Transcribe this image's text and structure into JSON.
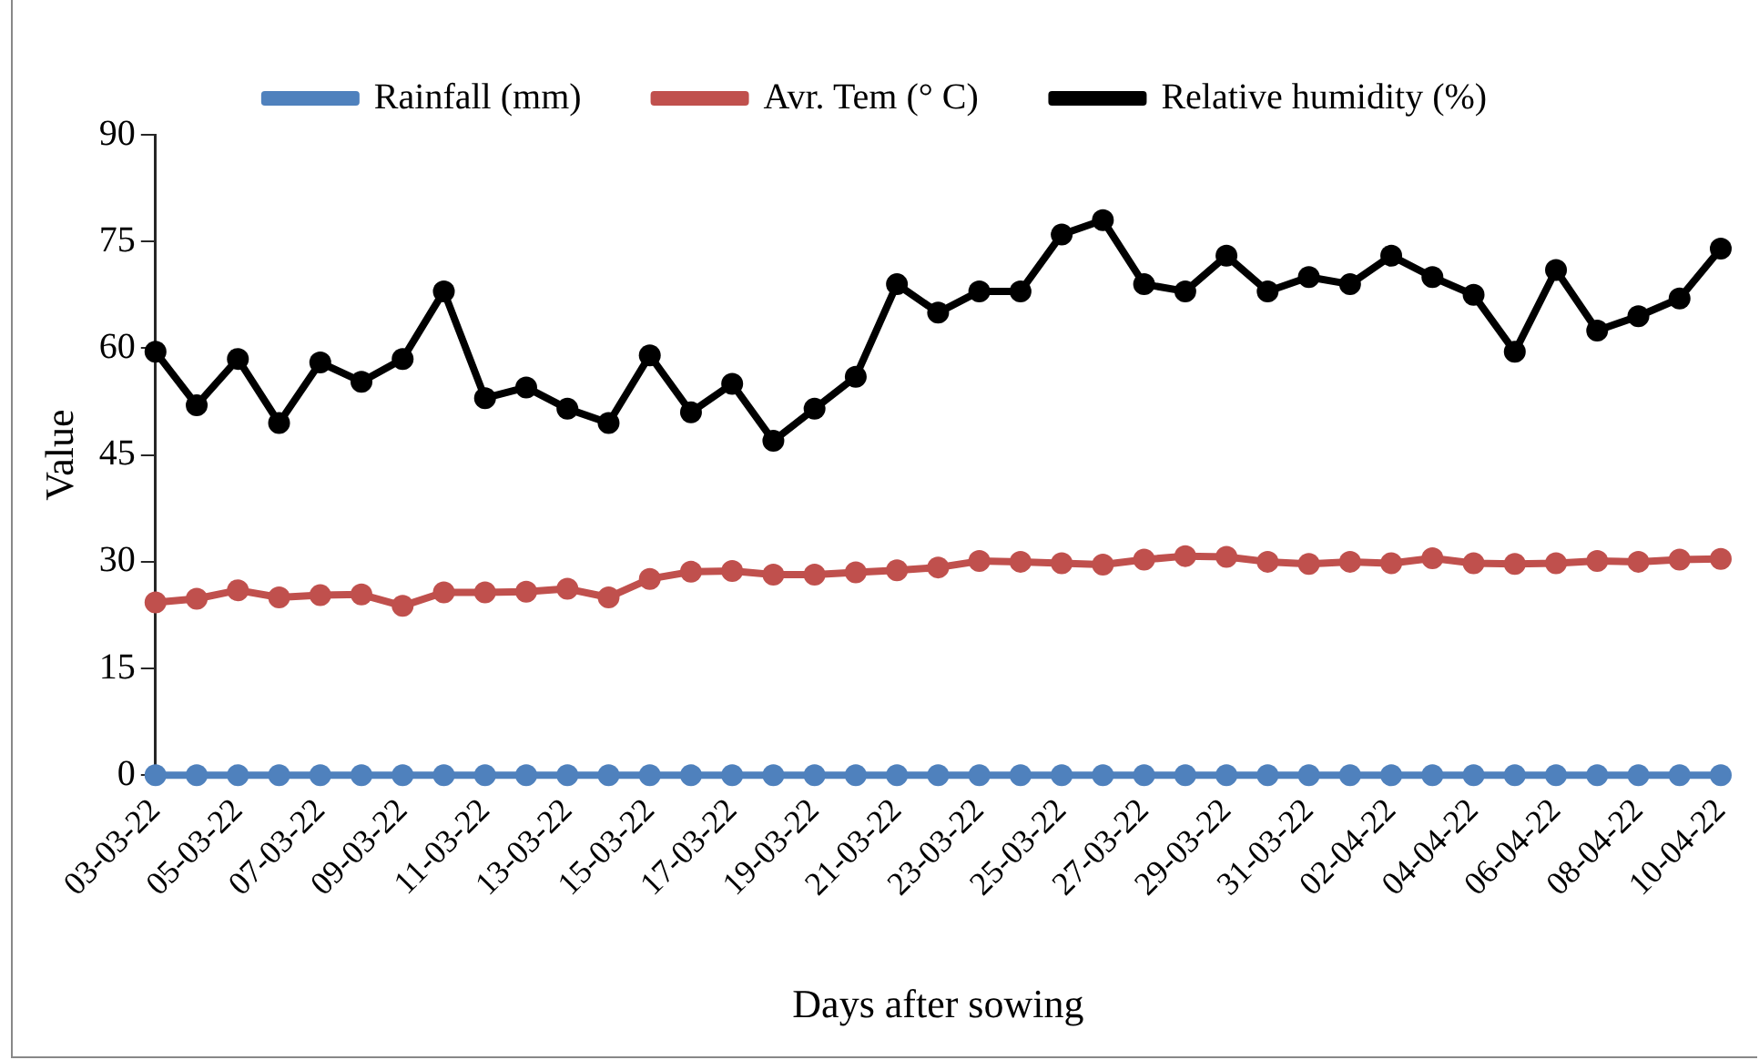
{
  "chart_data": {
    "type": "line",
    "xlabel": "Days after sowing",
    "ylabel": "Value",
    "categories": [
      "03-03-22",
      null,
      "05-03-22",
      null,
      "07-03-22",
      null,
      "09-03-22",
      null,
      "11-03-22",
      null,
      "13-03-22",
      null,
      "15-03-22",
      null,
      "17-03-22",
      null,
      "19-03-22",
      null,
      "21-03-22",
      null,
      "23-03-22",
      null,
      "25-03-22",
      null,
      "27-03-22",
      null,
      "29-03-22",
      null,
      "31-03-22",
      null,
      "02-04-22",
      null,
      "04-04-22",
      null,
      "06-04-22",
      null,
      "08-04-22",
      null,
      "10-04-22"
    ],
    "series": [
      {
        "name": "Rainfall (mm)",
        "color": "#4f81bd",
        "values": [
          0,
          0,
          0,
          0,
          0,
          0,
          0,
          0,
          0,
          0,
          0,
          0,
          0,
          0,
          0,
          0,
          0,
          0,
          0,
          0,
          0,
          0,
          0,
          0,
          0,
          0,
          0,
          0,
          0,
          0,
          0,
          0,
          0,
          0,
          0,
          0,
          0,
          0,
          0
        ]
      },
      {
        "name": "Avr. Tem (° C)",
        "color": "#c0504d",
        "values": [
          24.3,
          24.8,
          26,
          25,
          25.3,
          25.4,
          23.8,
          25.7,
          25.7,
          25.8,
          26.2,
          25,
          27.6,
          28.6,
          28.7,
          28.2,
          28.2,
          28.5,
          28.8,
          29.2,
          30.1,
          30,
          29.8,
          29.6,
          30.3,
          30.8,
          30.7,
          30,
          29.7,
          30,
          29.8,
          30.5,
          29.8,
          29.7,
          29.8,
          30.1,
          30,
          30.3,
          30.4
        ]
      },
      {
        "name": "Relative humidity (%)",
        "color": "#000000",
        "values": [
          59.5,
          52,
          58.5,
          49.5,
          58,
          55.3,
          58.5,
          68,
          53,
          54.5,
          51.5,
          49.5,
          59,
          51,
          55,
          47,
          51.5,
          56,
          69,
          65,
          68,
          68,
          76,
          78,
          69,
          68,
          73,
          68,
          70,
          69,
          73,
          70,
          67.5,
          59.5,
          71,
          62.5,
          64.5,
          67,
          74
        ]
      }
    ],
    "ylim": [
      0,
      90
    ],
    "yticks": [
      0,
      15,
      30,
      45,
      60,
      75,
      90
    ],
    "grid": false,
    "legend": "top",
    "marker": "circle",
    "line_style": "solid"
  }
}
